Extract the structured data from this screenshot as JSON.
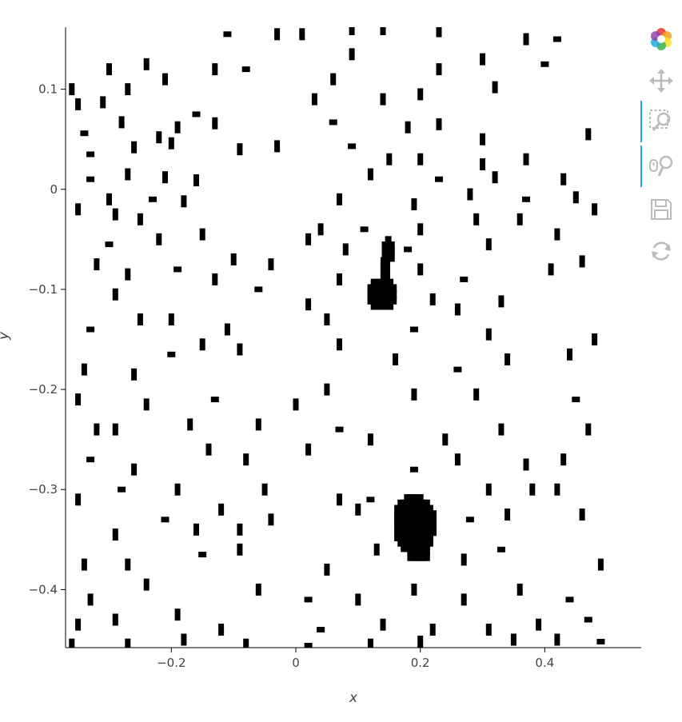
{
  "chart_data": {
    "type": "scatter",
    "title": "",
    "xlabel": "x",
    "ylabel": "y",
    "xlim": [
      -0.37,
      0.555
    ],
    "ylim": [
      -0.458,
      0.162
    ],
    "x_ticks": [
      -0.2,
      0,
      0.2,
      0.4
    ],
    "y_ticks": [
      0.1,
      0,
      -0.1,
      -0.2,
      -0.3,
      -0.4
    ],
    "x_tick_labels": [
      "−0.2",
      "0",
      "0.2",
      "0.4"
    ],
    "y_tick_labels": [
      "0.1",
      "0",
      "−0.1",
      "−0.2",
      "−0.3",
      "−0.4"
    ],
    "grid": false,
    "legend": false,
    "marker": "rect",
    "marker_color": "#000000",
    "x_spacing": 0.0105,
    "y_spacing": 0.0107,
    "clusters": [
      {
        "x": 0.137,
        "y": -0.105,
        "rx": 0.022,
        "ry": 0.016
      },
      {
        "x": 0.148,
        "y": -0.062,
        "rx": 0.01,
        "ry": 0.011
      },
      {
        "x": 0.143,
        "y": -0.082,
        "rx": 0.007,
        "ry": 0.012
      },
      {
        "x": 0.191,
        "y": -0.335,
        "rx": 0.033,
        "ry": 0.028
      },
      {
        "x": 0.197,
        "y": -0.362,
        "rx": 0.018,
        "ry": 0.01
      }
    ],
    "points": [
      [
        0.09,
        0.16
      ],
      [
        0.14,
        0.16
      ],
      [
        -0.11,
        0.155
      ],
      [
        -0.03,
        0.155
      ],
      [
        0.01,
        0.155
      ],
      [
        0.23,
        0.158
      ],
      [
        0.37,
        0.15
      ],
      [
        0.42,
        0.15
      ],
      [
        -0.36,
        0.1
      ],
      [
        -0.3,
        0.12
      ],
      [
        -0.24,
        0.125
      ],
      [
        -0.13,
        0.12
      ],
      [
        -0.08,
        0.12
      ],
      [
        0.06,
        0.11
      ],
      [
        0.09,
        0.135
      ],
      [
        0.23,
        0.12
      ],
      [
        0.3,
        0.13
      ],
      [
        0.4,
        0.125
      ],
      [
        -0.35,
        0.085
      ],
      [
        -0.31,
        0.087
      ],
      [
        -0.27,
        0.1
      ],
      [
        -0.21,
        0.11
      ],
      [
        -0.16,
        0.075
      ],
      [
        0.03,
        0.09
      ],
      [
        0.14,
        0.09
      ],
      [
        0.2,
        0.095
      ],
      [
        0.32,
        0.102
      ],
      [
        -0.34,
        0.056
      ],
      [
        -0.28,
        0.067
      ],
      [
        -0.22,
        0.052
      ],
      [
        -0.19,
        0.062
      ],
      [
        -0.13,
        0.066
      ],
      [
        0.06,
        0.067
      ],
      [
        0.18,
        0.062
      ],
      [
        0.23,
        0.065
      ],
      [
        0.3,
        0.05
      ],
      [
        0.47,
        0.055
      ],
      [
        -0.33,
        0.035
      ],
      [
        -0.26,
        0.042
      ],
      [
        -0.2,
        0.046
      ],
      [
        -0.09,
        0.04
      ],
      [
        -0.03,
        0.043
      ],
      [
        0.09,
        0.043
      ],
      [
        0.15,
        0.03
      ],
      [
        0.2,
        0.03
      ],
      [
        0.3,
        0.025
      ],
      [
        0.37,
        0.03
      ],
      [
        -0.33,
        0.01
      ],
      [
        -0.27,
        0.015
      ],
      [
        -0.21,
        0.012
      ],
      [
        -0.16,
        0.009
      ],
      [
        0.12,
        0.015
      ],
      [
        0.23,
        0.01
      ],
      [
        0.32,
        0.012
      ],
      [
        0.43,
        0.01
      ],
      [
        -0.35,
        -0.02
      ],
      [
        -0.3,
        -0.01
      ],
      [
        -0.23,
        -0.01
      ],
      [
        -0.18,
        -0.012
      ],
      [
        0.07,
        -0.01
      ],
      [
        0.19,
        -0.015
      ],
      [
        0.28,
        -0.005
      ],
      [
        0.37,
        -0.01
      ],
      [
        0.45,
        -0.008
      ],
      [
        -0.29,
        -0.025
      ],
      [
        -0.25,
        -0.03
      ],
      [
        0.04,
        -0.04
      ],
      [
        0.11,
        -0.04
      ],
      [
        0.2,
        -0.04
      ],
      [
        0.29,
        -0.03
      ],
      [
        0.36,
        -0.03
      ],
      [
        0.48,
        -0.02
      ],
      [
        -0.3,
        -0.055
      ],
      [
        -0.22,
        -0.05
      ],
      [
        -0.15,
        -0.045
      ],
      [
        0.02,
        -0.05
      ],
      [
        0.08,
        -0.06
      ],
      [
        0.18,
        -0.06
      ],
      [
        0.31,
        -0.055
      ],
      [
        0.42,
        -0.045
      ],
      [
        -0.32,
        -0.075
      ],
      [
        -0.27,
        -0.085
      ],
      [
        -0.19,
        -0.08
      ],
      [
        -0.1,
        -0.07
      ],
      [
        -0.04,
        -0.075
      ],
      [
        0.07,
        -0.09
      ],
      [
        0.2,
        -0.08
      ],
      [
        0.27,
        -0.09
      ],
      [
        0.41,
        -0.08
      ],
      [
        0.46,
        -0.072
      ],
      [
        -0.29,
        -0.105
      ],
      [
        -0.13,
        -0.09
      ],
      [
        -0.06,
        -0.1
      ],
      [
        0.02,
        -0.115
      ],
      [
        0.22,
        -0.11
      ],
      [
        0.26,
        -0.12
      ],
      [
        0.33,
        -0.112
      ],
      [
        -0.33,
        -0.14
      ],
      [
        -0.25,
        -0.13
      ],
      [
        -0.2,
        -0.13
      ],
      [
        -0.11,
        -0.14
      ],
      [
        0.05,
        -0.13
      ],
      [
        0.19,
        -0.14
      ],
      [
        0.31,
        -0.145
      ],
      [
        0.48,
        -0.15
      ],
      [
        -0.34,
        -0.18
      ],
      [
        -0.26,
        -0.185
      ],
      [
        -0.2,
        -0.165
      ],
      [
        -0.15,
        -0.155
      ],
      [
        -0.09,
        -0.16
      ],
      [
        0.07,
        -0.155
      ],
      [
        0.16,
        -0.17
      ],
      [
        0.26,
        -0.18
      ],
      [
        0.34,
        -0.17
      ],
      [
        0.44,
        -0.165
      ],
      [
        -0.35,
        -0.21
      ],
      [
        -0.24,
        -0.215
      ],
      [
        -0.13,
        -0.21
      ],
      [
        0.0,
        -0.215
      ],
      [
        0.05,
        -0.2
      ],
      [
        0.19,
        -0.205
      ],
      [
        0.29,
        -0.205
      ],
      [
        0.45,
        -0.21
      ],
      [
        -0.32,
        -0.24
      ],
      [
        -0.29,
        -0.24
      ],
      [
        -0.17,
        -0.235
      ],
      [
        -0.06,
        -0.235
      ],
      [
        0.07,
        -0.24
      ],
      [
        0.12,
        -0.25
      ],
      [
        0.24,
        -0.25
      ],
      [
        0.33,
        -0.24
      ],
      [
        0.47,
        -0.24
      ],
      [
        -0.33,
        -0.27
      ],
      [
        -0.26,
        -0.28
      ],
      [
        -0.14,
        -0.26
      ],
      [
        -0.08,
        -0.27
      ],
      [
        0.02,
        -0.26
      ],
      [
        0.19,
        -0.28
      ],
      [
        0.26,
        -0.27
      ],
      [
        0.37,
        -0.275
      ],
      [
        0.43,
        -0.27
      ],
      [
        -0.35,
        -0.31
      ],
      [
        -0.28,
        -0.3
      ],
      [
        -0.19,
        -0.3
      ],
      [
        -0.12,
        -0.32
      ],
      [
        -0.05,
        -0.3
      ],
      [
        0.07,
        -0.31
      ],
      [
        0.12,
        -0.31
      ],
      [
        0.31,
        -0.3
      ],
      [
        0.38,
        -0.3
      ],
      [
        0.42,
        -0.3
      ],
      [
        -0.29,
        -0.345
      ],
      [
        -0.21,
        -0.33
      ],
      [
        -0.16,
        -0.34
      ],
      [
        -0.09,
        -0.34
      ],
      [
        -0.04,
        -0.33
      ],
      [
        0.1,
        -0.32
      ],
      [
        0.28,
        -0.33
      ],
      [
        0.34,
        -0.325
      ],
      [
        0.46,
        -0.325
      ],
      [
        -0.34,
        -0.375
      ],
      [
        -0.27,
        -0.375
      ],
      [
        -0.15,
        -0.365
      ],
      [
        -0.09,
        -0.36
      ],
      [
        0.05,
        -0.38
      ],
      [
        0.13,
        -0.36
      ],
      [
        0.27,
        -0.37
      ],
      [
        0.33,
        -0.36
      ],
      [
        0.49,
        -0.375
      ],
      [
        -0.33,
        -0.41
      ],
      [
        -0.24,
        -0.395
      ],
      [
        -0.06,
        -0.4
      ],
      [
        0.02,
        -0.41
      ],
      [
        0.1,
        -0.41
      ],
      [
        0.19,
        -0.4
      ],
      [
        0.27,
        -0.41
      ],
      [
        0.36,
        -0.4
      ],
      [
        0.44,
        -0.41
      ],
      [
        -0.35,
        -0.435
      ],
      [
        -0.29,
        -0.43
      ],
      [
        -0.19,
        -0.425
      ],
      [
        -0.12,
        -0.44
      ],
      [
        0.04,
        -0.44
      ],
      [
        0.14,
        -0.435
      ],
      [
        0.22,
        -0.44
      ],
      [
        0.31,
        -0.44
      ],
      [
        0.39,
        -0.435
      ],
      [
        0.47,
        -0.43
      ],
      [
        -0.36,
        -0.455
      ],
      [
        -0.27,
        -0.455
      ],
      [
        -0.18,
        -0.45
      ],
      [
        -0.08,
        -0.455
      ],
      [
        0.02,
        -0.456
      ],
      [
        0.12,
        -0.455
      ],
      [
        0.2,
        -0.452
      ],
      [
        0.35,
        -0.45
      ],
      [
        0.42,
        -0.45
      ],
      [
        0.49,
        -0.452
      ]
    ]
  },
  "toolbar": {
    "logo": "bokeh-logo-icon",
    "tools": [
      {
        "name": "pan-tool",
        "icon": "pan-icon",
        "active": false
      },
      {
        "name": "box-zoom-tool",
        "icon": "box-zoom-icon",
        "active": true
      },
      {
        "name": "wheel-zoom-tool",
        "icon": "wheel-zoom-icon",
        "active": true
      },
      {
        "name": "save-tool",
        "icon": "save-icon",
        "active": false
      },
      {
        "name": "reset-tool",
        "icon": "reset-icon",
        "active": false
      }
    ],
    "active_color": "#26aae1",
    "icon_color": "#bbbbbb"
  }
}
